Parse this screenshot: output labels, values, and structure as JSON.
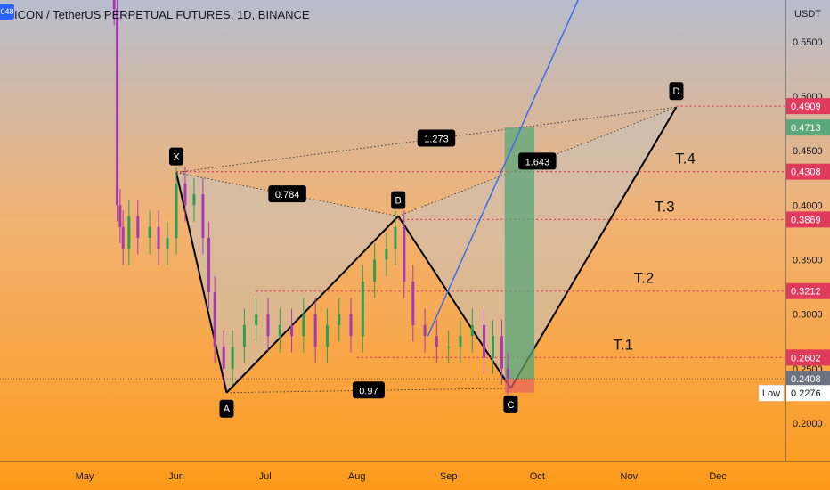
{
  "header": {
    "title": "ICON / TetherUS PERPETUAL FUTURES, 1D, BINANCE",
    "badge": "048",
    "currency": "USDT"
  },
  "colors": {
    "bg_top": "#b8bdcd",
    "bg_mid": "#f2b272",
    "bg_bottom": "#fd9a1a",
    "up_candle": "#2e9e4f",
    "down_candle": "#a53bb0",
    "pattern_line": "#000000",
    "pattern_fill": "#c7c2c0",
    "trend_line": "#3b6ee8",
    "target_line": "#e03a5c",
    "profit_zone": "#5aa77a",
    "loss_zone": "#e8625c",
    "current_price": "#6b7280"
  },
  "chart_data": {
    "type": "candlestick",
    "title": "ICON / TetherUS PERPETUAL FUTURES, 1D, BINANCE",
    "price_axis": {
      "unit": "USDT",
      "range": [
        0.16,
        0.62
      ],
      "ticks": [
        "0.5500",
        "0.5000",
        "0.4500",
        "0.4000",
        "0.3500",
        "0.3000",
        "0.2500",
        "0.2000"
      ]
    },
    "time_axis": {
      "ticks": [
        {
          "label": "May",
          "date": "2022-05-01"
        },
        {
          "label": "Jun",
          "date": "2022-06-01"
        },
        {
          "label": "Jul",
          "date": "2022-07-01"
        },
        {
          "label": "Aug",
          "date": "2022-08-01"
        },
        {
          "label": "Sep",
          "date": "2022-09-01"
        },
        {
          "label": "Oct",
          "date": "2022-10-01"
        },
        {
          "label": "Nov",
          "date": "2022-11-01"
        },
        {
          "label": "Dec",
          "date": "2022-12-01"
        }
      ]
    },
    "candles_close": [
      {
        "date": "2022-05-10",
        "close": 0.62
      },
      {
        "date": "2022-05-11",
        "close": 0.58
      },
      {
        "date": "2022-05-12",
        "close": 0.4
      },
      {
        "date": "2022-05-13",
        "close": 0.38
      },
      {
        "date": "2022-05-14",
        "close": 0.36
      },
      {
        "date": "2022-05-16",
        "close": 0.39
      },
      {
        "date": "2022-05-19",
        "close": 0.37
      },
      {
        "date": "2022-05-23",
        "close": 0.38
      },
      {
        "date": "2022-05-26",
        "close": 0.36
      },
      {
        "date": "2022-05-29",
        "close": 0.37
      },
      {
        "date": "2022-06-01",
        "close": 0.42
      },
      {
        "date": "2022-06-04",
        "close": 0.4
      },
      {
        "date": "2022-06-07",
        "close": 0.41
      },
      {
        "date": "2022-06-10",
        "close": 0.37
      },
      {
        "date": "2022-06-12",
        "close": 0.32
      },
      {
        "date": "2022-06-14",
        "close": 0.27
      },
      {
        "date": "2022-06-17",
        "close": 0.25
      },
      {
        "date": "2022-06-20",
        "close": 0.27
      },
      {
        "date": "2022-06-24",
        "close": 0.29
      },
      {
        "date": "2022-06-28",
        "close": 0.3
      },
      {
        "date": "2022-07-02",
        "close": 0.28
      },
      {
        "date": "2022-07-06",
        "close": 0.29
      },
      {
        "date": "2022-07-10",
        "close": 0.28
      },
      {
        "date": "2022-07-14",
        "close": 0.3
      },
      {
        "date": "2022-07-18",
        "close": 0.27
      },
      {
        "date": "2022-07-22",
        "close": 0.29
      },
      {
        "date": "2022-07-26",
        "close": 0.3
      },
      {
        "date": "2022-07-30",
        "close": 0.28
      },
      {
        "date": "2022-08-03",
        "close": 0.33
      },
      {
        "date": "2022-08-07",
        "close": 0.35
      },
      {
        "date": "2022-08-11",
        "close": 0.36
      },
      {
        "date": "2022-08-14",
        "close": 0.38
      },
      {
        "date": "2022-08-17",
        "close": 0.33
      },
      {
        "date": "2022-08-20",
        "close": 0.29
      },
      {
        "date": "2022-08-24",
        "close": 0.28
      },
      {
        "date": "2022-08-28",
        "close": 0.27
      },
      {
        "date": "2022-09-01",
        "close": 0.27
      },
      {
        "date": "2022-09-05",
        "close": 0.28
      },
      {
        "date": "2022-09-09",
        "close": 0.29
      },
      {
        "date": "2022-09-13",
        "close": 0.26
      },
      {
        "date": "2022-09-16",
        "close": 0.28
      },
      {
        "date": "2022-09-19",
        "close": 0.25
      },
      {
        "date": "2022-09-21",
        "close": 0.241
      }
    ],
    "harmonic_pattern": {
      "points": [
        {
          "label": "X",
          "date": "2022-06-01",
          "price": 0.43
        },
        {
          "label": "A",
          "date": "2022-06-18",
          "price": 0.228
        },
        {
          "label": "B",
          "date": "2022-08-15",
          "price": 0.39
        },
        {
          "label": "C",
          "date": "2022-09-22",
          "price": 0.232
        },
        {
          "label": "D",
          "date": "2022-11-17",
          "price": 0.49
        }
      ],
      "ratios": [
        {
          "label": "1.273",
          "between": "X-D"
        },
        {
          "label": "0.784",
          "between": "X-B"
        },
        {
          "label": "1.643",
          "between": "B-D"
        },
        {
          "label": "0.97",
          "between": "A-C"
        }
      ]
    },
    "targets": [
      {
        "label": "T.1",
        "price": 0.2602,
        "price_label": "0.2602"
      },
      {
        "label": "T.2",
        "price": 0.3212,
        "price_label": "0.3212"
      },
      {
        "label": "T.3",
        "price": 0.3869,
        "price_label": "0.3869"
      },
      {
        "label": "T.4",
        "price": 0.4308,
        "price_label": "0.4308"
      },
      {
        "label": "",
        "price": 0.4909,
        "price_label": "0.4909"
      }
    ],
    "position": {
      "entry": 0.2408,
      "take_profit": 0.4713,
      "stop": 0.228,
      "start_date": "2022-09-20",
      "end_date": "2022-09-30",
      "tp_label": "0.4713"
    },
    "current_price": {
      "price": 0.2408,
      "label": "0.2408"
    },
    "low_marker": {
      "text": "Low",
      "price": 0.2276,
      "label": "0.2276"
    },
    "trendline": {
      "from": {
        "date": "2022-08-25",
        "price": 0.28
      },
      "to": {
        "date": "2022-10-20",
        "price": 0.62
      }
    }
  }
}
